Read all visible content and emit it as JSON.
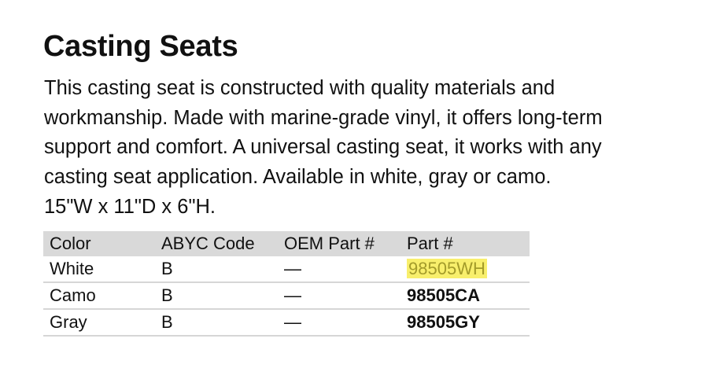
{
  "title": "Casting Seats",
  "description_lines": [
    "This casting seat is constructed with quality materials and",
    "workmanship. Made with marine-grade vinyl, it offers long-term",
    "support and comfort. A universal casting seat, it works with any",
    "casting seat application. Available in white, gray or camo.",
    "15\"W x 11\"D x 6\"H."
  ],
  "table": {
    "headers": [
      "Color",
      "ABYC Code",
      "OEM Part #",
      "Part #"
    ],
    "rows": [
      {
        "color": "White",
        "abyc": "B",
        "oem": "—",
        "part": "98505WH",
        "highlighted": true
      },
      {
        "color": "Camo",
        "abyc": "B",
        "oem": "—",
        "part": "98505CA"
      },
      {
        "color": "Gray",
        "abyc": "B",
        "oem": "—",
        "part": "98505GY"
      }
    ]
  },
  "colors": {
    "highlight": "#f8ef6c",
    "header_bg": "#d9d9d9"
  }
}
